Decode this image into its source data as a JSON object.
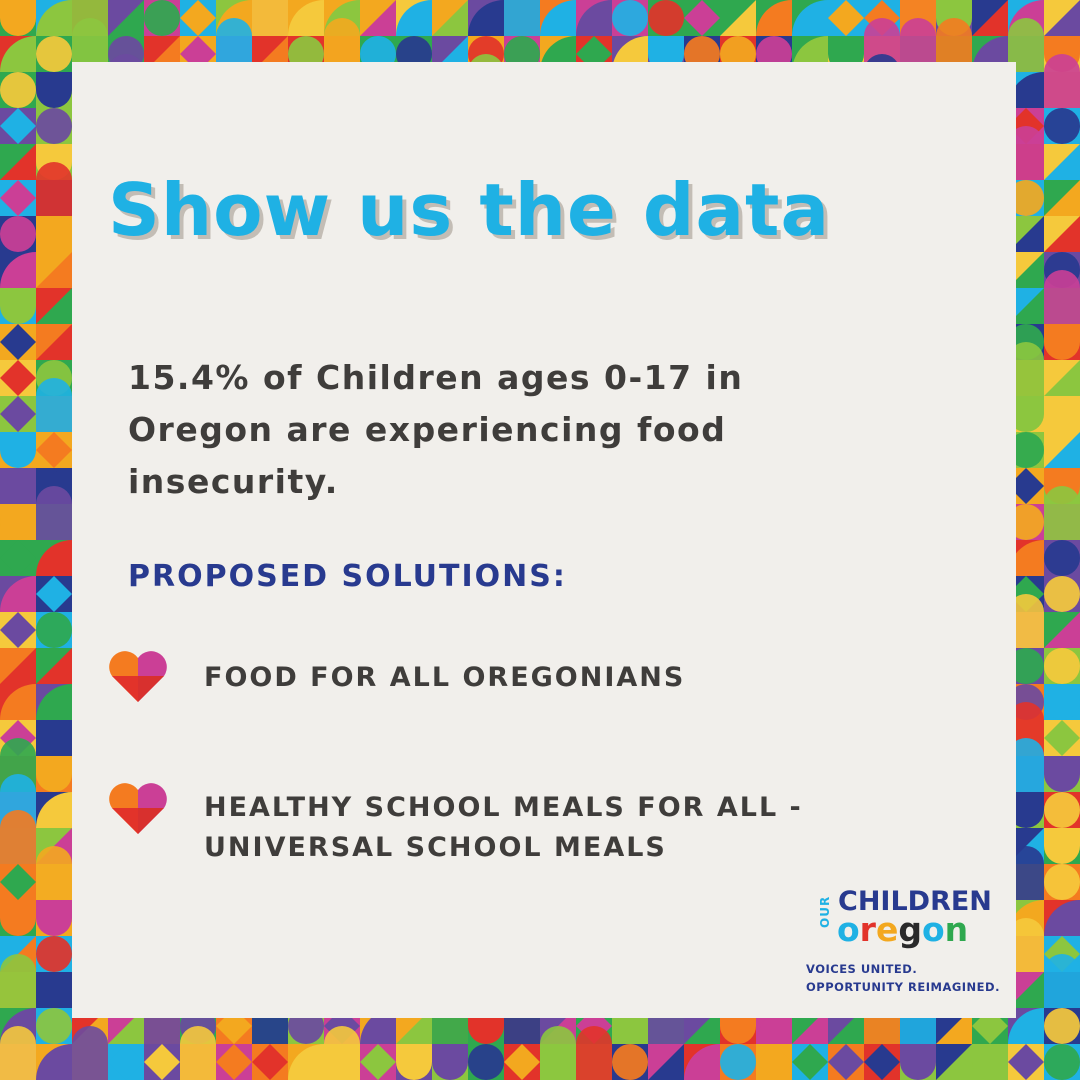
{
  "title": "Show us the data",
  "stat_text": "15.4% of Children ages 0-17 in Oregon are experiencing food insecurity.",
  "solutions_heading": "PROPOSED SOLUTIONS:",
  "solutions": [
    {
      "label": "FOOD FOR ALL OREGONIANS",
      "icon": "heart-icon"
    },
    {
      "label": "HEALTHY SCHOOL MEALS FOR ALL - UNIVERSAL SCHOOL MEALS",
      "icon": "heart-icon"
    }
  ],
  "logo": {
    "our": "OUR",
    "children": "CHILDREN",
    "oregon_letters": [
      "o",
      "r",
      "e",
      "g",
      "o",
      "n"
    ],
    "oregon_colors": [
      "#1fb1e4",
      "#e2332a",
      "#f3a81f",
      "#2a2a2a",
      "#1fb1e4",
      "#2fa84f"
    ],
    "tagline_1": "VOICES UNITED.",
    "tagline_2": "OPPORTUNITY REIMAGINED."
  },
  "colors": {
    "background": "#f1efeb",
    "title": "#1fb1e4",
    "title_shadow": "#c3bdb5",
    "body_text": "#3f3d3b",
    "heading": "#283a8f",
    "pattern": [
      "#e2332a",
      "#f3a81f",
      "#1fb1e4",
      "#283a8f",
      "#2fa84f",
      "#8cc63f",
      "#cb3f96",
      "#6b4aa0",
      "#f47b20",
      "#f5c93c"
    ]
  }
}
